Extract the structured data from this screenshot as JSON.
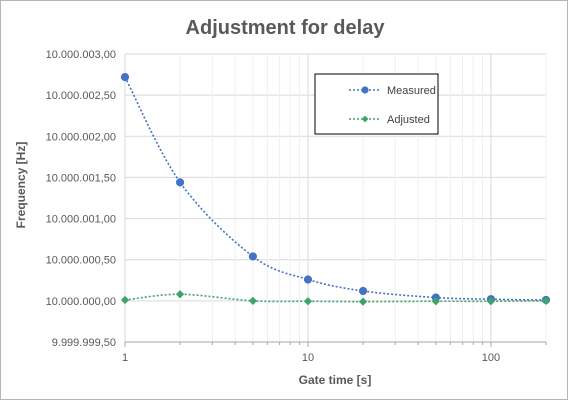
{
  "chart_data": {
    "type": "line",
    "title": "Adjustment for delay",
    "xlabel": "Gate time [s]",
    "ylabel": "Frequency [Hz]",
    "x_scale": "log",
    "xlim": [
      1,
      200
    ],
    "ylim": [
      9999999.5,
      10000003.0
    ],
    "x_ticks": [
      {
        "value": 1,
        "label": "1"
      },
      {
        "value": 10,
        "label": "10"
      },
      {
        "value": 100,
        "label": "100"
      }
    ],
    "y_ticks": [
      {
        "value": 9999999.5,
        "label": "9.999.999,50"
      },
      {
        "value": 10000000.0,
        "label": "10.000.000,00"
      },
      {
        "value": 10000000.5,
        "label": "10.000.000,50"
      },
      {
        "value": 10000001.0,
        "label": "10.000.001,00"
      },
      {
        "value": 10000001.5,
        "label": "10.000.001,50"
      },
      {
        "value": 10000002.0,
        "label": "10.000.002,00"
      },
      {
        "value": 10000002.5,
        "label": "10.000.002,50"
      },
      {
        "value": 10000003.0,
        "label": "10.000.003,00"
      }
    ],
    "grid": true,
    "legend_position": "top-right",
    "x": [
      1,
      2,
      5,
      10,
      20,
      50,
      100,
      200
    ],
    "series": [
      {
        "name": "Measured",
        "color": "#4472c4",
        "marker": "circle",
        "values": [
          10000002.72,
          10000001.44,
          10000000.54,
          10000000.26,
          10000000.12,
          10000000.04,
          10000000.02,
          10000000.01
        ]
      },
      {
        "name": "Adjusted",
        "color": "#3fa36b",
        "marker": "diamond",
        "values": [
          10000000.01,
          10000000.08,
          10000000.0,
          9999999.995,
          9999999.99,
          9999999.995,
          9999999.995,
          10000000.0
        ]
      }
    ]
  }
}
